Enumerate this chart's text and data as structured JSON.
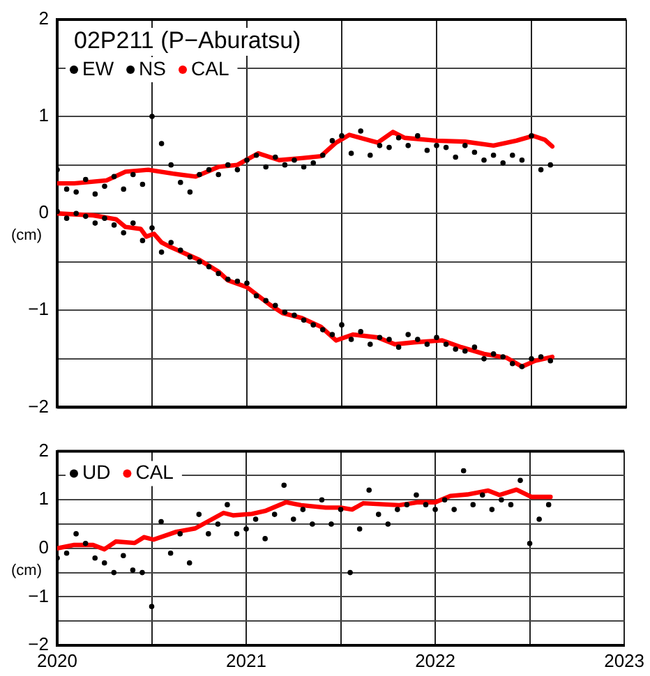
{
  "chart_data": [
    {
      "type": "scatter",
      "title": "02P211 (P−Aburatsu)",
      "ylabel": "(cm)",
      "legend": "top left",
      "grid": true,
      "tick_labels": "y",
      "xlim": [
        2020,
        2023
      ],
      "xticks": [
        2020,
        {
          "value": 2020.5,
          "label": null
        },
        2021,
        {
          "value": 2021.5,
          "label": null
        },
        2022,
        {
          "value": 2022.5,
          "label": null
        },
        2023
      ],
      "ylim": [
        -2,
        2
      ],
      "yticks": [
        -2,
        {
          "value": -1.5,
          "label": null
        },
        -1,
        {
          "value": -0.5,
          "label": null
        },
        0,
        {
          "value": 0.5,
          "label": null
        },
        1,
        {
          "value": 1.5,
          "label": null
        },
        2
      ],
      "x": [
        2020.0,
        2020.05,
        2020.1,
        2020.15,
        2020.2,
        2020.25,
        2020.3,
        2020.35,
        2020.4,
        2020.45,
        2020.5,
        2020.55,
        2020.6,
        2020.65,
        2020.7,
        2020.75,
        2020.8,
        2020.85,
        2020.9,
        2020.95,
        2021.0,
        2021.05,
        2021.1,
        2021.15,
        2021.2,
        2021.25,
        2021.3,
        2021.35,
        2021.4,
        2021.45,
        2021.5,
        2021.55,
        2021.6,
        2021.65,
        2021.7,
        2021.75,
        2021.8,
        2021.85,
        2021.9,
        2021.95,
        2022.0,
        2022.05,
        2022.1,
        2022.15,
        2022.2,
        2022.25,
        2022.3,
        2022.35,
        2022.4,
        2022.45,
        2022.5,
        2022.55,
        2022.6
      ],
      "series": [
        {
          "name": "EW",
          "marker": "circle",
          "color": "#000000",
          "values": [
            0.45,
            0.25,
            0.22,
            0.35,
            0.2,
            0.28,
            0.38,
            0.25,
            0.4,
            0.3,
            1.0,
            0.72,
            0.5,
            0.32,
            0.22,
            0.4,
            0.45,
            0.4,
            0.5,
            0.45,
            0.55,
            0.6,
            0.48,
            0.58,
            0.5,
            0.55,
            0.48,
            0.52,
            0.6,
            0.75,
            0.8,
            0.62,
            0.85,
            0.6,
            0.7,
            0.68,
            0.78,
            0.7,
            0.8,
            0.65,
            0.7,
            0.68,
            0.58,
            0.7,
            0.63,
            0.55,
            0.6,
            0.52,
            0.6,
            0.55,
            0.8,
            0.45,
            0.5
          ]
        },
        {
          "name": "NS",
          "marker": "circle",
          "color": "#000000",
          "values": [
            0.02,
            -0.05,
            0.0,
            -0.03,
            -0.1,
            -0.05,
            -0.12,
            -0.2,
            -0.1,
            -0.28,
            -0.15,
            -0.4,
            -0.3,
            -0.38,
            -0.45,
            -0.5,
            -0.55,
            -0.62,
            -0.68,
            -0.7,
            -0.72,
            -0.85,
            -0.9,
            -0.95,
            -1.02,
            -1.05,
            -1.1,
            -1.15,
            -1.2,
            -1.25,
            -1.15,
            -1.3,
            -1.22,
            -1.35,
            -1.28,
            -1.3,
            -1.38,
            -1.25,
            -1.3,
            -1.35,
            -1.28,
            -1.35,
            -1.4,
            -1.42,
            -1.38,
            -1.5,
            -1.45,
            -1.48,
            -1.55,
            -1.58,
            -1.5,
            -1.48,
            -1.52
          ]
        },
        {
          "name": "CAL",
          "type": "line",
          "color": "#ff0000",
          "x": [
            2020.0,
            2020.09,
            2020.26,
            2020.36,
            2020.48,
            2020.61,
            2020.73,
            2020.85,
            2020.95,
            2021.06,
            2021.17,
            2021.29,
            2021.39,
            2021.47,
            2021.54,
            2021.69,
            2021.77,
            2021.83,
            2022.0,
            2022.15,
            2022.3,
            2022.42,
            2022.51,
            2022.57,
            2022.61
          ],
          "values": [
            0.31,
            0.31,
            0.34,
            0.43,
            0.45,
            0.41,
            0.38,
            0.48,
            0.5,
            0.62,
            0.55,
            0.57,
            0.59,
            0.73,
            0.81,
            0.73,
            0.84,
            0.78,
            0.75,
            0.74,
            0.7,
            0.75,
            0.8,
            0.76,
            0.69
          ]
        },
        {
          "type": "line",
          "color": "#ff0000",
          "x": [
            2020.0,
            2020.19,
            2020.31,
            2020.36,
            2020.44,
            2020.47,
            2020.51,
            2020.55,
            2020.59,
            2020.67,
            2020.75,
            2020.85,
            2020.9,
            2021.0,
            2021.12,
            2021.19,
            2021.29,
            2021.39,
            2021.47,
            2021.56,
            2021.69,
            2021.78,
            2021.88,
            2022.03,
            2022.13,
            2022.25,
            2022.37,
            2022.45,
            2022.52,
            2022.61
          ],
          "values": [
            0,
            -0.02,
            -0.06,
            -0.14,
            -0.16,
            -0.24,
            -0.21,
            -0.3,
            -0.34,
            -0.41,
            -0.48,
            -0.6,
            -0.69,
            -0.76,
            -0.94,
            -1.03,
            -1.08,
            -1.17,
            -1.31,
            -1.25,
            -1.28,
            -1.35,
            -1.33,
            -1.31,
            -1.38,
            -1.45,
            -1.49,
            -1.58,
            -1.52,
            -1.48
          ]
        }
      ]
    },
    {
      "type": "scatter",
      "ylabel": "(cm)",
      "legend": "top left",
      "grid": true,
      "xlim": [
        2020,
        2023
      ],
      "xticks": [
        2020,
        {
          "value": 2020.5,
          "label": null
        },
        2021,
        {
          "value": 2021.5,
          "label": null
        },
        2022,
        {
          "value": 2022.5,
          "label": null
        },
        2023
      ],
      "ylim": [
        -2,
        2
      ],
      "yticks": [
        -2,
        {
          "value": -1.5,
          "label": null
        },
        -1,
        {
          "value": -0.5,
          "label": null
        },
        0,
        {
          "value": 0.5,
          "label": null
        },
        1,
        {
          "value": 1.5,
          "label": null
        },
        2
      ],
      "x": [
        2020.0,
        2020.05,
        2020.1,
        2020.15,
        2020.2,
        2020.25,
        2020.3,
        2020.35,
        2020.4,
        2020.45,
        2020.5,
        2020.55,
        2020.6,
        2020.65,
        2020.7,
        2020.75,
        2020.8,
        2020.85,
        2020.9,
        2020.95,
        2021.0,
        2021.05,
        2021.1,
        2021.15,
        2021.2,
        2021.25,
        2021.3,
        2021.35,
        2021.4,
        2021.45,
        2021.5,
        2021.55,
        2021.6,
        2021.65,
        2021.7,
        2021.75,
        2021.8,
        2021.85,
        2021.9,
        2021.95,
        2022.0,
        2022.05,
        2022.1,
        2022.15,
        2022.2,
        2022.25,
        2022.3,
        2022.35,
        2022.4,
        2022.45,
        2022.5,
        2022.55,
        2022.6
      ],
      "series": [
        {
          "name": "UD",
          "marker": "circle",
          "color": "#000000",
          "values": [
            -0.2,
            -0.1,
            0.3,
            0.1,
            -0.2,
            -0.3,
            -0.5,
            -0.15,
            -0.45,
            -0.5,
            -1.2,
            0.55,
            -0.1,
            0.3,
            -0.3,
            0.7,
            0.3,
            0.5,
            0.9,
            0.3,
            0.4,
            0.6,
            0.2,
            0.7,
            1.3,
            0.6,
            0.8,
            0.5,
            1.0,
            0.5,
            0.8,
            -0.5,
            0.4,
            1.2,
            0.7,
            0.5,
            0.8,
            0.9,
            1.1,
            0.9,
            0.8,
            1.0,
            0.8,
            1.6,
            0.9,
            1.1,
            0.8,
            1.0,
            0.9,
            1.4,
            0.1,
            0.6,
            0.9
          ]
        },
        {
          "name": "CAL",
          "type": "line",
          "color": "#ff0000",
          "x": [
            2020.0,
            2020.09,
            2020.19,
            2020.25,
            2020.31,
            2020.41,
            2020.46,
            2020.51,
            2020.63,
            2020.73,
            2020.88,
            2020.93,
            2021.03,
            2021.1,
            2021.21,
            2021.29,
            2021.42,
            2021.5,
            2021.56,
            2021.62,
            2021.81,
            2021.91,
            2022.0,
            2022.08,
            2022.17,
            2022.28,
            2022.34,
            2022.43,
            2022.51,
            2022.61
          ],
          "values": [
            0,
            0.07,
            0.07,
            -0.02,
            0.14,
            0.11,
            0.23,
            0.18,
            0.34,
            0.41,
            0.73,
            0.68,
            0.71,
            0.77,
            0.95,
            0.89,
            0.84,
            0.84,
            0.8,
            0.93,
            0.89,
            0.95,
            0.95,
            1.08,
            1.11,
            1.19,
            1.1,
            1.21,
            1.06,
            1.06
          ]
        }
      ]
    }
  ]
}
